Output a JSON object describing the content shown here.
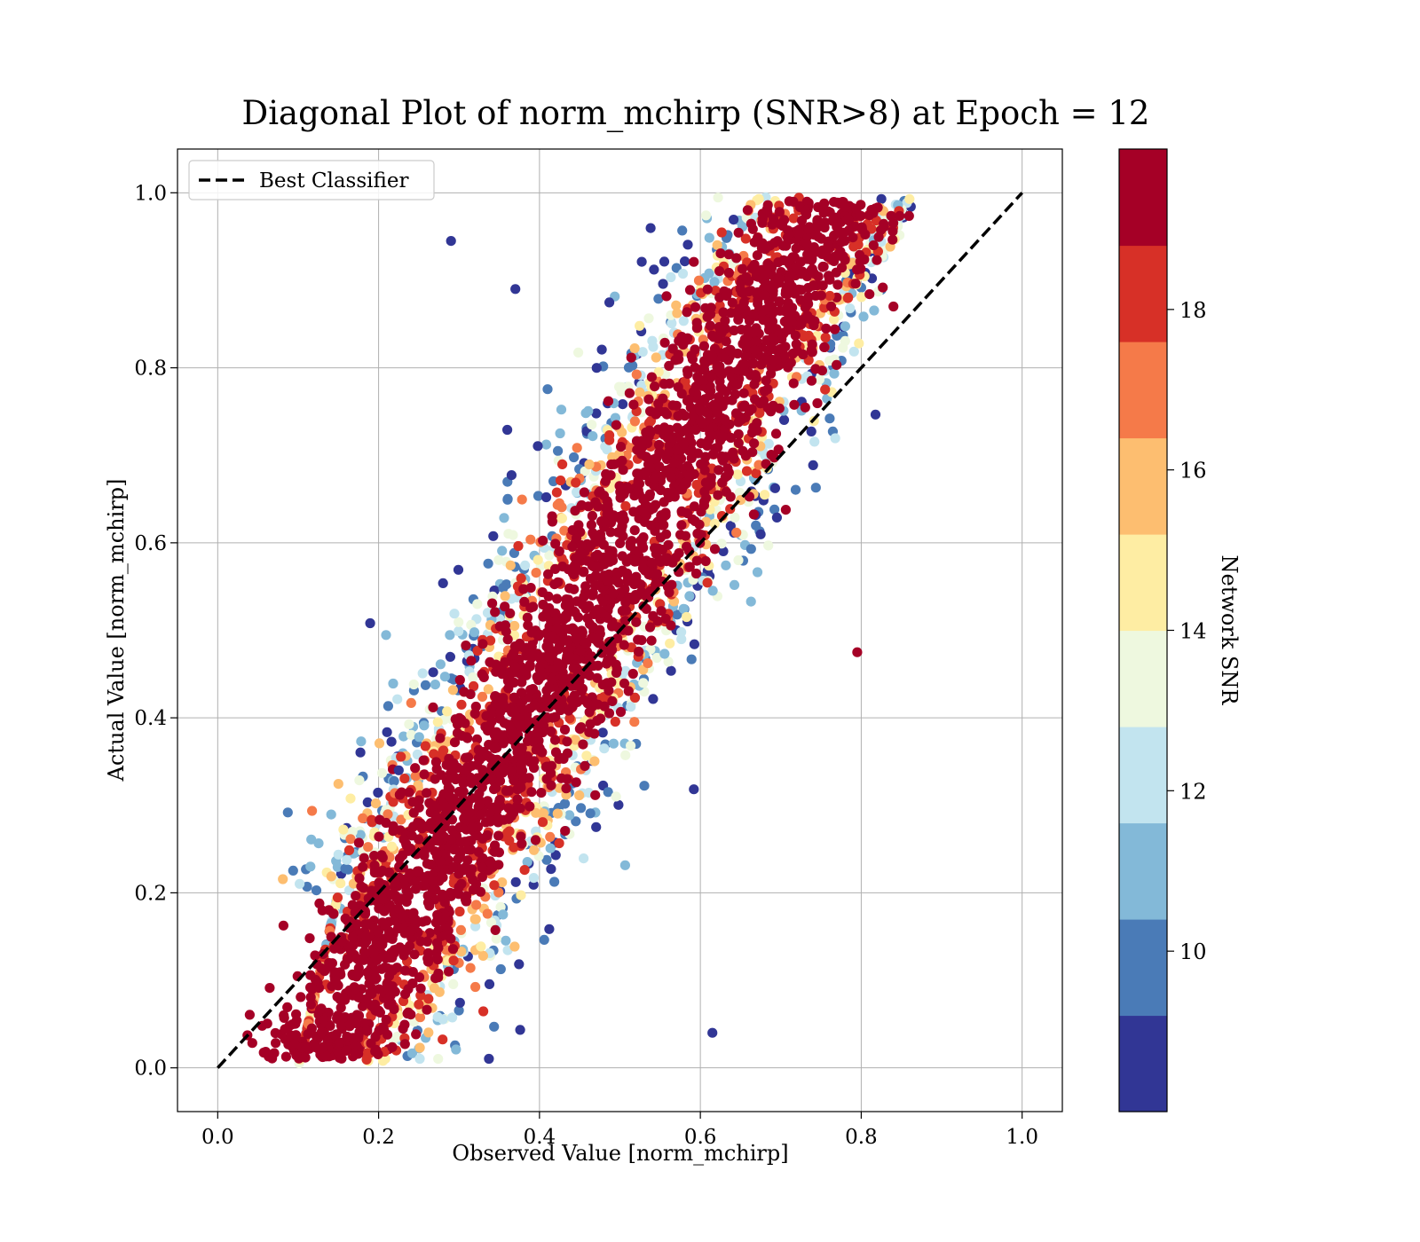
{
  "chart_data": {
    "type": "scatter",
    "title": "Diagonal Plot of norm_mchirp (SNR>8) at Epoch = 12",
    "xlabel": "Observed Value [norm_mchirp]",
    "ylabel": "Actual Value [norm_mchirp]",
    "xlim": [
      -0.05,
      1.05
    ],
    "ylim": [
      -0.05,
      1.05
    ],
    "xticks": [
      0.0,
      0.2,
      0.4,
      0.6,
      0.8,
      1.0
    ],
    "yticks": [
      0.0,
      0.2,
      0.4,
      0.6,
      0.8,
      1.0
    ],
    "xtick_labels": [
      "0.0",
      "0.2",
      "0.4",
      "0.6",
      "0.8",
      "1.0"
    ],
    "ytick_labels": [
      "0.0",
      "0.2",
      "0.4",
      "0.6",
      "0.8",
      "1.0"
    ],
    "grid": true,
    "legend": {
      "placement": "upper-left",
      "entries": [
        {
          "label": "Best Classifier",
          "style": "dashed",
          "color": "#000000"
        }
      ]
    },
    "reference_line": {
      "name": "Best Classifier",
      "x": [
        0.0,
        1.0
      ],
      "y": [
        0.0,
        1.0
      ]
    },
    "colorbar": {
      "label": "Network SNR",
      "range": [
        8,
        20
      ],
      "ticks": [
        10,
        12,
        14,
        16,
        18
      ],
      "tick_labels": [
        "10",
        "12",
        "14",
        "16",
        "18"
      ],
      "colors": [
        "#313695",
        "#4a7bb7",
        "#83b9d8",
        "#c2e4ef",
        "#eef8df",
        "#feeda3",
        "#fdbe70",
        "#f57a49",
        "#d73027",
        "#a50026"
      ]
    },
    "point_clouds": [
      {
        "snr": 19.5,
        "pairs": [
          [
            0.5,
            0.5
          ]
        ],
        "spread_along": 0.85,
        "spread_across": 0.05,
        "count": 2200
      },
      {
        "snr": 18.5,
        "offset": "both-sides",
        "count": 600
      },
      {
        "snr": 16,
        "offset": "both-sides",
        "count": 400
      },
      {
        "snr": 12,
        "offset": "outer",
        "count": 350
      },
      {
        "snr": 9,
        "offset": "outer",
        "count": 250
      }
    ],
    "outliers": [
      {
        "x": 0.29,
        "y": 0.945,
        "snr": 8.5
      },
      {
        "x": 0.37,
        "y": 0.89,
        "snr": 8.5
      },
      {
        "x": 0.615,
        "y": 0.04,
        "snr": 8.5
      },
      {
        "x": 0.225,
        "y": 0.34,
        "snr": 8.5
      },
      {
        "x": 0.84,
        "y": 0.87,
        "snr": 19.5
      },
      {
        "x": 0.795,
        "y": 0.475,
        "snr": 19.5
      }
    ]
  }
}
